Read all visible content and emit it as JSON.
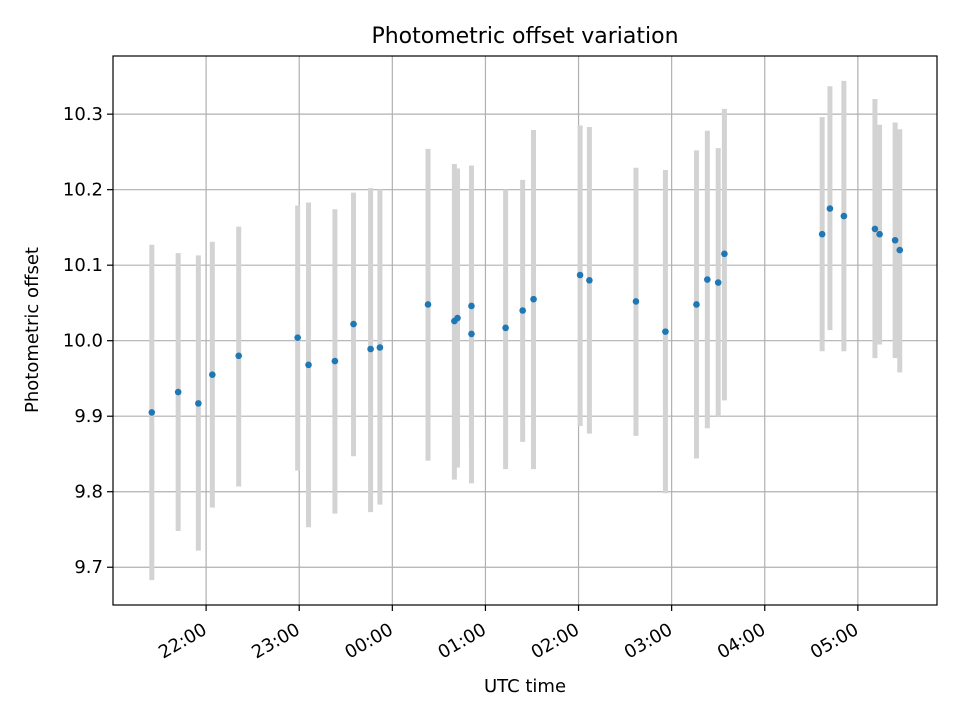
{
  "chart_data": {
    "type": "scatter",
    "title": "Photometric offset variation",
    "xlabel": "UTC time",
    "ylabel": "Photometric offset",
    "x_tick_labels": [
      "22:00",
      "23:00",
      "00:00",
      "01:00",
      "02:00",
      "03:00",
      "04:00",
      "05:00"
    ],
    "y_tick_labels": [
      "9.7",
      "9.8",
      "9.9",
      "10.0",
      "10.1",
      "10.2",
      "10.3"
    ],
    "x_ticks_hours": [
      22,
      23,
      24,
      25,
      26,
      27,
      28,
      29
    ],
    "y_ticks": [
      9.7,
      9.8,
      9.9,
      10.0,
      10.1,
      10.2,
      10.3
    ],
    "xlim_hours": [
      21.0,
      29.85
    ],
    "ylim": [
      9.65,
      10.377
    ],
    "grid": true,
    "colors": {
      "point": "#1f77b4",
      "errorbar": "#d3d3d3",
      "grid": "#b0b0b0"
    },
    "series": [
      {
        "points": [
          {
            "x": "21:25",
            "y": 9.905,
            "low": 9.683,
            "high": 10.127
          },
          {
            "x": "21:42",
            "y": 9.932,
            "low": 9.748,
            "high": 10.116
          },
          {
            "x": "21:55",
            "y": 9.917,
            "low": 9.722,
            "high": 10.113
          },
          {
            "x": "22:04",
            "y": 9.955,
            "low": 9.779,
            "high": 10.131
          },
          {
            "x": "22:21",
            "y": 9.98,
            "low": 9.807,
            "high": 10.151
          },
          {
            "x": "22:59",
            "y": 10.004,
            "low": 9.828,
            "high": 10.179
          },
          {
            "x": "23:06",
            "y": 9.968,
            "low": 9.753,
            "high": 10.183
          },
          {
            "x": "23:23",
            "y": 9.973,
            "low": 9.771,
            "high": 10.174
          },
          {
            "x": "23:35",
            "y": 10.022,
            "low": 9.847,
            "high": 10.196
          },
          {
            "x": "23:46",
            "y": 9.989,
            "low": 9.773,
            "high": 10.202
          },
          {
            "x": "23:52",
            "y": 9.991,
            "low": 9.783,
            "high": 10.2
          },
          {
            "x": "00:23",
            "y": 10.048,
            "low": 9.841,
            "high": 10.254
          },
          {
            "x": "00:40",
            "y": 10.026,
            "low": 9.816,
            "high": 10.234
          },
          {
            "x": "00:42",
            "y": 10.03,
            "low": 9.832,
            "high": 10.228
          },
          {
            "x": "00:51",
            "y": 10.046,
            "low": 9.859,
            "high": 10.232
          },
          {
            "x": "00:51",
            "y": 10.009,
            "low": 9.811,
            "high": 10.206
          },
          {
            "x": "01:13",
            "y": 10.017,
            "low": 9.83,
            "high": 10.2
          },
          {
            "x": "01:24",
            "y": 10.04,
            "low": 9.866,
            "high": 10.213
          },
          {
            "x": "01:31",
            "y": 10.055,
            "low": 9.83,
            "high": 10.279
          },
          {
            "x": "02:01",
            "y": 10.087,
            "low": 9.887,
            "high": 10.285
          },
          {
            "x": "02:07",
            "y": 10.08,
            "low": 9.877,
            "high": 10.283
          },
          {
            "x": "02:37",
            "y": 10.052,
            "low": 9.874,
            "high": 10.229
          },
          {
            "x": "02:56",
            "y": 10.012,
            "low": 9.798,
            "high": 10.226
          },
          {
            "x": "03:16",
            "y": 10.048,
            "low": 9.844,
            "high": 10.252
          },
          {
            "x": "03:23",
            "y": 10.081,
            "low": 9.884,
            "high": 10.278
          },
          {
            "x": "03:30",
            "y": 10.077,
            "low": 9.9,
            "high": 10.255
          },
          {
            "x": "03:34",
            "y": 10.115,
            "low": 9.921,
            "high": 10.307
          },
          {
            "x": "04:37",
            "y": 10.141,
            "low": 9.986,
            "high": 10.296
          },
          {
            "x": "04:42",
            "y": 10.175,
            "low": 10.014,
            "high": 10.337
          },
          {
            "x": "04:51",
            "y": 10.165,
            "low": 9.986,
            "high": 10.344
          },
          {
            "x": "05:11",
            "y": 10.148,
            "low": 9.977,
            "high": 10.32
          },
          {
            "x": "05:14",
            "y": 10.141,
            "low": 9.995,
            "high": 10.286
          },
          {
            "x": "05:24",
            "y": 10.133,
            "low": 9.977,
            "high": 10.289
          },
          {
            "x": "05:27",
            "y": 10.12,
            "low": 9.958,
            "high": 10.28
          }
        ]
      }
    ]
  }
}
